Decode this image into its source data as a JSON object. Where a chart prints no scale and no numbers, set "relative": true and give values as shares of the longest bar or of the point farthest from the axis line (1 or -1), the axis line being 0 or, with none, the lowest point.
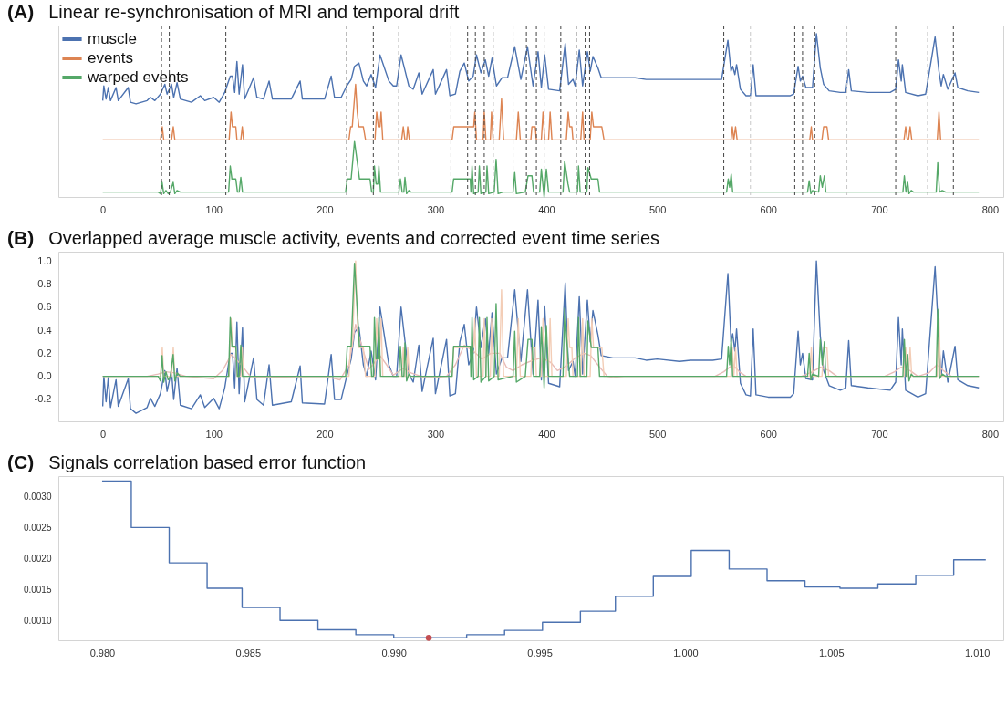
{
  "chart_data": [
    {
      "type": "line",
      "title": "Linear re-synchronisation of MRI and temporal drift",
      "annotations": [
        "(A)"
      ],
      "relative": true,
      "legend": "top left",
      "xlim": [
        -40,
        812
      ],
      "xticks": [
        0,
        100,
        200,
        300,
        400,
        500,
        600,
        700,
        800
      ],
      "series": [
        {
          "name": "muscle",
          "color": "#4c72b0",
          "x": [
            0,
            1,
            3,
            5,
            7,
            12,
            14,
            23,
            25,
            30,
            40,
            43,
            47,
            52,
            56,
            58,
            62,
            64,
            67,
            70,
            80,
            88,
            92,
            100,
            105,
            110,
            115,
            117,
            119,
            121,
            123,
            126,
            128,
            136,
            139,
            145,
            150,
            153,
            170,
            178,
            180,
            200,
            206,
            209,
            215,
            220,
            224,
            227,
            231,
            235,
            238,
            242,
            246,
            250,
            254,
            258,
            262,
            265,
            269,
            272,
            276,
            280,
            285,
            288,
            298,
            300,
            310,
            313,
            318,
            322,
            326,
            330,
            334,
            337,
            341,
            345,
            348,
            351,
            355,
            360,
            365,
            371.5,
            377,
            383,
            388,
            392.5,
            395.5,
            398.5,
            402,
            412,
            417,
            420,
            424,
            426,
            429.7,
            432.7,
            437,
            439.6,
            442,
            446.5,
            449.5,
            460,
            480,
            490,
            500,
            520,
            530,
            550,
            558,
            563.7,
            566.5,
            568,
            570,
            571.5,
            575,
            580,
            584,
            586.5,
            589,
            600,
            620,
            623,
            627,
            629,
            631,
            634,
            640,
            643.5,
            647,
            650,
            655,
            665,
            670,
            672.6,
            675,
            690,
            710,
            715,
            717.5,
            720,
            721,
            724,
            735,
            742,
            750.5,
            754,
            756,
            758,
            762,
            768.5,
            771,
            780,
            790
          ],
          "values": [
            0.59,
            0.68,
            0.6,
            0.67,
            0.59,
            0.67,
            0.59,
            0.67,
            0.58,
            0.57,
            0.59,
            0.61,
            0.59,
            0.63,
            0.69,
            0.63,
            0.69,
            0.61,
            0.7,
            0.6,
            0.58,
            0.62,
            0.59,
            0.61,
            0.58,
            0.64,
            0.74,
            0.74,
            0.64,
            0.83,
            0.63,
            0.81,
            0.6,
            0.73,
            0.61,
            0.6,
            0.71,
            0.6,
            0.6,
            0.71,
            0.6,
            0.6,
            0.74,
            0.61,
            0.61,
            0.68,
            0.72,
            0.8,
            0.82,
            0.71,
            0.68,
            0.75,
            0.67,
            0.87,
            0.79,
            0.71,
            0.68,
            0.68,
            0.87,
            0.79,
            0.68,
            0.66,
            0.76,
            0.63,
            0.78,
            0.63,
            0.78,
            0.62,
            0.63,
            0.77,
            0.82,
            0.71,
            0.74,
            0.87,
            0.76,
            0.84,
            0.74,
            0.85,
            0.68,
            0.73,
            0.73,
            0.92,
            0.72,
            0.92,
            0.68,
            0.89,
            0.67,
            0.87,
            0.66,
            0.65,
            0.94,
            0.69,
            0.72,
            0.68,
            0.9,
            0.68,
            0.89,
            0.77,
            0.86,
            0.79,
            0.73,
            0.73,
            0.73,
            0.72,
            0.72,
            0.72,
            0.72,
            0.72,
            0.72,
            0.96,
            0.77,
            0.8,
            0.75,
            0.81,
            0.66,
            0.62,
            0.62,
            0.81,
            0.62,
            0.62,
            0.62,
            0.63,
            0.8,
            0.71,
            0.74,
            0.67,
            0.67,
            1.0,
            0.79,
            0.69,
            0.65,
            0.64,
            0.64,
            0.78,
            0.65,
            0.64,
            0.64,
            0.66,
            0.84,
            0.71,
            0.81,
            0.64,
            0.62,
            0.63,
            0.98,
            0.77,
            0.68,
            0.75,
            0.66,
            0.76,
            0.67,
            0.65,
            0.64
          ]
        },
        {
          "name": "events",
          "color": "#dd8452",
          "x": [
            0,
            52,
            53.7,
            55,
            62,
            63.6,
            65,
            114,
            115.7,
            117,
            120,
            121,
            124.5,
            125.8,
            127,
            222,
            223.5,
            225,
            226,
            228,
            229.5,
            231,
            235,
            237,
            245.5,
            247,
            248.5,
            250,
            251,
            252.5,
            269.5,
            271,
            272.5,
            274,
            275,
            276.5,
            315,
            316.5,
            334.5,
            335.5,
            337,
            343,
            344,
            345.5,
            349.5,
            350.6,
            352,
            357.5,
            359.6,
            361.5,
            373,
            374.7,
            376.5,
            386,
            387,
            390,
            391,
            395.5,
            397,
            398.5,
            402,
            403.4,
            405,
            418,
            419.7,
            421,
            423,
            424,
            431,
            432.7,
            434,
            439.5,
            441,
            442.5,
            450,
            452,
            566.5,
            567.7,
            569,
            570.6,
            572,
            637.5,
            638.9,
            640,
            648.5,
            650,
            651.5,
            653,
            654.5,
            722.5,
            724,
            725.5,
            726.5,
            728,
            729.5,
            752.5,
            754,
            755.5,
            790
          ],
          "values": [
            0.35,
            0.35,
            0.43,
            0.35,
            0.35,
            0.43,
            0.35,
            0.35,
            0.52,
            0.43,
            0.43,
            0.35,
            0.35,
            0.43,
            0.35,
            0.35,
            0.43,
            0.43,
            0.52,
            0.69,
            0.52,
            0.43,
            0.43,
            0.35,
            0.35,
            0.52,
            0.43,
            0.43,
            0.52,
            0.35,
            0.35,
            0.43,
            0.35,
            0.35,
            0.43,
            0.35,
            0.35,
            0.43,
            0.43,
            0.52,
            0.35,
            0.35,
            0.52,
            0.35,
            0.35,
            0.52,
            0.35,
            0.35,
            0.6,
            0.35,
            0.35,
            0.52,
            0.35,
            0.35,
            0.43,
            0.43,
            0.35,
            0.35,
            0.52,
            0.35,
            0.35,
            0.52,
            0.35,
            0.35,
            0.52,
            0.43,
            0.43,
            0.35,
            0.35,
            0.52,
            0.35,
            0.35,
            0.52,
            0.43,
            0.43,
            0.35,
            0.35,
            0.43,
            0.35,
            0.43,
            0.35,
            0.35,
            0.43,
            0.35,
            0.35,
            0.43,
            0.43,
            0.43,
            0.35,
            0.35,
            0.43,
            0.35,
            0.35,
            0.43,
            0.35,
            0.35,
            0.52,
            0.35,
            0.35
          ]
        },
        {
          "name": "warped events",
          "color": "#55a868",
          "x": [
            0,
            50,
            52,
            53.5,
            55,
            57,
            59,
            61,
            63.5,
            65,
            67,
            70,
            113.5,
            115,
            116.5,
            120,
            121.5,
            123,
            124.5,
            126,
            219,
            220.5,
            224,
            227,
            230,
            231.5,
            241,
            242.5,
            244,
            245,
            246.5,
            248,
            249,
            250.5,
            267,
            268.4,
            270,
            271.5,
            272.5,
            274,
            276,
            278,
            315,
            316.4,
            331.4,
            332,
            333,
            334.5,
            338.5,
            339.6,
            341,
            345.5,
            346.5,
            348,
            353,
            354.7,
            356.5,
            361,
            370,
            371.5,
            373,
            381,
            383.5,
            387,
            388.5,
            394,
            395.5,
            398,
            400,
            402,
            415,
            416.5,
            419.5,
            421,
            428,
            429,
            430.5,
            436.5,
            437.5,
            440.5,
            446.5,
            448,
            562.5,
            564,
            565.3,
            566.7,
            568,
            635.5,
            637,
            638.5,
            640,
            645.5,
            647,
            648.8,
            650.7,
            652,
            721.5,
            722.8,
            724.3,
            725.8,
            727,
            729,
            731,
            751.5,
            752.9,
            754.5,
            757,
            760,
            790
          ],
          "values": [
            0.03,
            0.03,
            0.02,
            0.09,
            0.02,
            0.04,
            0.02,
            0.03,
            0.09,
            0.02,
            0.04,
            0.03,
            0.03,
            0.19,
            0.11,
            0.11,
            0.03,
            0.03,
            0.12,
            0.03,
            0.03,
            0.11,
            0.11,
            0.34,
            0.19,
            0.11,
            0.11,
            0.03,
            0.03,
            0.19,
            0.08,
            0.08,
            0.19,
            0.03,
            0.03,
            0.11,
            0.03,
            0.03,
            0.12,
            0.02,
            0.04,
            0.03,
            0.03,
            0.11,
            0.11,
            0.03,
            0.19,
            0.02,
            0.03,
            0.19,
            0.02,
            0.03,
            0.19,
            0.02,
            0.03,
            0.23,
            0.02,
            0.03,
            0.03,
            0.15,
            0.02,
            0.03,
            0.13,
            0.13,
            0.03,
            0.03,
            0.17,
            0.0,
            0.17,
            0.03,
            0.03,
            0.22,
            0.08,
            0.03,
            0.03,
            0.19,
            0.03,
            0.03,
            0.18,
            0.11,
            0.11,
            0.03,
            0.03,
            0.11,
            0.06,
            0.14,
            0.03,
            0.03,
            0.1,
            0.02,
            0.04,
            0.03,
            0.13,
            0.06,
            0.13,
            0.03,
            0.03,
            0.13,
            0.03,
            0.09,
            0.02,
            0.04,
            0.03,
            0.03,
            0.21,
            0.03,
            0.04,
            0.03,
            0.03
          ]
        }
      ],
      "ref_lines": [
        {
          "axis": "x",
          "value": 53,
          "color": "#444444",
          "line_style": "dashed"
        },
        {
          "axis": "x",
          "value": 60,
          "color": "#444444",
          "line_style": "dashed"
        },
        {
          "axis": "x",
          "value": 111,
          "color": "#444444",
          "line_style": "dashed"
        },
        {
          "axis": "x",
          "value": 220,
          "color": "#444444",
          "line_style": "dashed"
        },
        {
          "axis": "x",
          "value": 244,
          "color": "#444444",
          "line_style": "dashed"
        },
        {
          "axis": "x",
          "value": 267,
          "color": "#444444",
          "line_style": "dashed"
        },
        {
          "axis": "x",
          "value": 314,
          "color": "#444444",
          "line_style": "dashed"
        },
        {
          "axis": "x",
          "value": 329,
          "color": "#444444",
          "line_style": "dashed"
        },
        {
          "axis": "x",
          "value": 336,
          "color": "#444444",
          "line_style": "dashed"
        },
        {
          "axis": "x",
          "value": 344,
          "color": "#444444",
          "line_style": "dashed"
        },
        {
          "axis": "x",
          "value": 352,
          "color": "#444444",
          "line_style": "dashed"
        },
        {
          "axis": "x",
          "value": 370,
          "color": "#444444",
          "line_style": "dashed"
        },
        {
          "axis": "x",
          "value": 382,
          "color": "#444444",
          "line_style": "dashed"
        },
        {
          "axis": "x",
          "value": 391,
          "color": "#444444",
          "line_style": "dashed"
        },
        {
          "axis": "x",
          "value": 398,
          "color": "#444444",
          "line_style": "dashed"
        },
        {
          "axis": "x",
          "value": 413,
          "color": "#444444",
          "line_style": "dashed"
        },
        {
          "axis": "x",
          "value": 427,
          "color": "#444444",
          "line_style": "dashed"
        },
        {
          "axis": "x",
          "value": 435,
          "color": "#444444",
          "line_style": "dashed"
        },
        {
          "axis": "x",
          "value": 439,
          "color": "#444444",
          "line_style": "dashed"
        },
        {
          "axis": "x",
          "value": 560,
          "color": "#444444",
          "line_style": "dashed"
        },
        {
          "axis": "x",
          "value": 584,
          "color": "#c8c8c8",
          "line_style": "dashed"
        },
        {
          "axis": "x",
          "value": 624,
          "color": "#444444",
          "line_style": "dashed"
        },
        {
          "axis": "x",
          "value": 631,
          "color": "#444444",
          "line_style": "dashed"
        },
        {
          "axis": "x",
          "value": 642,
          "color": "#444444",
          "line_style": "dashed"
        },
        {
          "axis": "x",
          "value": 671,
          "color": "#c8c8c8",
          "line_style": "dashed"
        },
        {
          "axis": "x",
          "value": 715,
          "color": "#444444",
          "line_style": "dashed"
        },
        {
          "axis": "x",
          "value": 744,
          "color": "#444444",
          "line_style": "dashed"
        },
        {
          "axis": "x",
          "value": 767,
          "color": "#444444",
          "line_style": "dashed"
        }
      ]
    },
    {
      "type": "line",
      "title": "Overlapped average muscle activity, events and corrected event time series",
      "annotations": [
        "(B)"
      ],
      "xlim": [
        -40,
        812
      ],
      "xticks": [
        0,
        100,
        200,
        300,
        400,
        500,
        600,
        700,
        800
      ],
      "ylim": [
        -0.39,
        1.08
      ],
      "yticks": [
        -0.2,
        {
          "value": 0,
          "label": "0.0"
        },
        0.2,
        0.4,
        0.6,
        0.8,
        {
          "value": 1,
          "label": "1.0"
        }
      ],
      "series": [
        {
          "color": "#4c72b0",
          "x": [
            0,
            1,
            3,
            5,
            7,
            12,
            14,
            23,
            25,
            30,
            40,
            43,
            47,
            52,
            56,
            58,
            62,
            64,
            67,
            70,
            80,
            88,
            92,
            100,
            105,
            110,
            115,
            117,
            119,
            121,
            123,
            126,
            128,
            136,
            139,
            145,
            150,
            153,
            170,
            178,
            180,
            200,
            206,
            209,
            215,
            220,
            224,
            227,
            231,
            235,
            238,
            242,
            246,
            250,
            254,
            258,
            262,
            265,
            269,
            272,
            276,
            280,
            285,
            288,
            298,
            300,
            310,
            313,
            318,
            322,
            326,
            330,
            334,
            337,
            341,
            345,
            348,
            351,
            355,
            360,
            365,
            371.5,
            377,
            383,
            388,
            392.5,
            395.5,
            398.5,
            402,
            412,
            417,
            420,
            424,
            426,
            429.7,
            432.7,
            437,
            439.6,
            442,
            446.5,
            449.5,
            460,
            480,
            490,
            500,
            520,
            530,
            550,
            558,
            563.7,
            566.5,
            568,
            570,
            571.5,
            575,
            580,
            584,
            586.5,
            589,
            600,
            620,
            623,
            627,
            629,
            631,
            634,
            640,
            643.5,
            647,
            650,
            655,
            665,
            670,
            672.6,
            675,
            690,
            710,
            715,
            717.5,
            720,
            721,
            724,
            735,
            742,
            750.5,
            754,
            756,
            758,
            762,
            768.5,
            771,
            780,
            790
          ],
          "values": [
            -0.26,
            0.0,
            -0.22,
            -0.01,
            -0.27,
            -0.03,
            -0.26,
            -0.02,
            -0.28,
            -0.32,
            -0.27,
            -0.19,
            -0.26,
            -0.15,
            0.05,
            -0.13,
            0.05,
            -0.2,
            0.07,
            -0.25,
            -0.28,
            -0.16,
            -0.27,
            -0.19,
            -0.28,
            -0.1,
            0.2,
            0.2,
            -0.1,
            0.47,
            -0.15,
            0.42,
            -0.22,
            0.16,
            -0.2,
            -0.25,
            0.1,
            -0.25,
            -0.22,
            0.09,
            -0.23,
            -0.24,
            0.19,
            -0.2,
            -0.2,
            0.0,
            0.15,
            0.38,
            0.43,
            0.1,
            0.0,
            0.22,
            -0.03,
            0.6,
            0.35,
            0.1,
            0.0,
            0.0,
            0.6,
            0.35,
            0.02,
            -0.05,
            0.27,
            -0.13,
            0.33,
            -0.15,
            0.32,
            -0.17,
            -0.15,
            0.3,
            0.45,
            0.1,
            0.2,
            0.6,
            0.25,
            0.5,
            0.2,
            0.55,
            0.02,
            0.16,
            0.16,
            0.75,
            0.13,
            0.75,
            0.02,
            0.66,
            -0.03,
            0.61,
            -0.06,
            -0.09,
            0.81,
            0.05,
            0.13,
            0.0,
            0.69,
            0.02,
            0.66,
            0.3,
            0.57,
            0.36,
            0.18,
            0.16,
            0.16,
            0.14,
            0.15,
            0.13,
            0.14,
            0.14,
            0.15,
            0.89,
            0.3,
            0.37,
            0.22,
            0.41,
            -0.06,
            -0.16,
            -0.17,
            0.41,
            -0.16,
            -0.18,
            -0.18,
            -0.15,
            0.39,
            0.1,
            0.2,
            -0.02,
            -0.03,
            1.0,
            0.35,
            0.05,
            -0.08,
            -0.12,
            -0.1,
            0.31,
            -0.08,
            -0.1,
            -0.12,
            -0.05,
            0.51,
            0.1,
            0.41,
            -0.12,
            -0.18,
            -0.15,
            0.95,
            0.3,
            0.0,
            0.22,
            -0.05,
            0.26,
            -0.03,
            -0.08,
            -0.1
          ]
        },
        {
          "color": "#e8bcb8",
          "x": [
            0,
            40,
            50,
            57,
            65,
            75,
            100,
            108,
            116,
            125,
            133,
            140,
            200,
            214,
            222,
            228,
            234,
            240,
            245,
            250,
            256,
            262,
            271,
            278,
            290,
            300,
            310,
            318,
            326,
            334,
            342,
            350,
            358,
            364,
            370,
            378,
            388,
            396,
            404,
            410,
            418,
            426,
            434,
            440,
            448,
            455,
            460,
            470,
            552,
            560,
            568,
            574,
            580,
            630,
            640,
            647,
            655,
            662,
            705,
            714,
            720,
            728,
            735,
            745,
            752,
            758,
            765,
            790
          ],
          "values": [
            0,
            0,
            0.02,
            0.04,
            0.03,
            0,
            -0.02,
            0.05,
            0.19,
            0.1,
            0,
            -0.01,
            0,
            -0.03,
            0.1,
            0.45,
            0.25,
            0.06,
            0.12,
            0.18,
            0.1,
            0.01,
            0.07,
            0.03,
            -0.01,
            -0.01,
            0,
            0.1,
            0.27,
            0.22,
            0.15,
            0.2,
            0.2,
            0.08,
            0.05,
            0.1,
            0.14,
            0.16,
            0.12,
            0.05,
            0.09,
            0.16,
            0.2,
            0.18,
            0.08,
            0,
            -0.01,
            0,
            0,
            0.04,
            0.1,
            0.04,
            0,
            0,
            0.04,
            0.08,
            0.05,
            0,
            0,
            0.04,
            0.08,
            0.05,
            0,
            0.03,
            0.1,
            0.05,
            0,
            0
          ]
        },
        {
          "color": "#f3cdb6",
          "x": [
            0,
            52,
            53.7,
            55,
            62,
            63.6,
            65,
            114,
            115.7,
            117,
            120,
            121,
            124.5,
            125.8,
            127,
            222,
            223.5,
            225,
            226,
            228,
            229.5,
            231,
            235,
            237,
            245.5,
            247,
            248.5,
            250,
            251,
            252.5,
            269.5,
            271,
            272.5,
            274,
            275,
            276.5,
            315,
            316.5,
            334.5,
            335.5,
            337,
            343,
            344,
            345.5,
            349.5,
            350.6,
            352,
            357.5,
            359.6,
            361.5,
            373,
            374.7,
            376.5,
            386,
            387,
            390,
            391,
            395.5,
            397,
            398.5,
            402,
            403.4,
            405,
            418,
            419.7,
            421,
            423,
            424,
            431,
            432.7,
            434,
            439.5,
            441,
            442.5,
            450,
            452,
            566.5,
            567.7,
            569,
            570.6,
            572,
            637.5,
            638.9,
            640,
            648.5,
            650,
            651.5,
            653,
            654.5,
            722.5,
            724,
            725.5,
            726.5,
            728,
            729.5,
            752.5,
            754,
            755.5,
            790
          ],
          "values": [
            0,
            0,
            0.25,
            0,
            0,
            0.25,
            0,
            0,
            0.5,
            0.25,
            0.25,
            0,
            0,
            0.25,
            0,
            0,
            0.25,
            0.25,
            0.5,
            1.0,
            0.5,
            0.25,
            0.25,
            0,
            0,
            0.5,
            0.25,
            0.25,
            0.5,
            0,
            0,
            0.25,
            0,
            0,
            0.25,
            0,
            0,
            0.25,
            0.25,
            0.5,
            0,
            0,
            0.5,
            0,
            0,
            0.5,
            0,
            0,
            0.75,
            0,
            0,
            0.5,
            0,
            0,
            0.25,
            0.25,
            0,
            0,
            0.5,
            0,
            0,
            0.5,
            0,
            0,
            0.5,
            0.25,
            0.25,
            0,
            0,
            0.5,
            0,
            0,
            0.5,
            0.25,
            0.25,
            0,
            0,
            0.25,
            0,
            0.25,
            0,
            0,
            0.25,
            0,
            0,
            0.25,
            0.25,
            0.25,
            0,
            0,
            0.25,
            0,
            0,
            0.25,
            0,
            0,
            0.5,
            0,
            0
          ]
        },
        {
          "color": "#55a868",
          "x": [
            0,
            50,
            52,
            53.5,
            55,
            57,
            59,
            61,
            63.5,
            65,
            67,
            70,
            113.5,
            115,
            116.5,
            120,
            121.5,
            123,
            124.5,
            126,
            219,
            220.5,
            224,
            227,
            230,
            231.5,
            241,
            242.5,
            244,
            245,
            246.5,
            248,
            249,
            250.5,
            267,
            268.4,
            270,
            271.5,
            272.5,
            274,
            276,
            278,
            315,
            316.4,
            331.4,
            332,
            333,
            334.5,
            338.5,
            339.6,
            341,
            345.5,
            346.5,
            348,
            353,
            354.7,
            356.5,
            361,
            370,
            371.5,
            373,
            381,
            383.5,
            387,
            388.5,
            394,
            395.5,
            398,
            400,
            402,
            415,
            416.5,
            419.5,
            421,
            428,
            429,
            430.5,
            436.5,
            437.5,
            440.5,
            446.5,
            448,
            562.5,
            564,
            565.3,
            566.7,
            568,
            635.5,
            637,
            638.5,
            640,
            645.5,
            647,
            648.8,
            650.7,
            652,
            721.5,
            722.8,
            724.3,
            725.8,
            727,
            729,
            731,
            751.5,
            752.9,
            754.5,
            757,
            760,
            790
          ],
          "values": [
            0,
            0,
            -0.04,
            0.18,
            -0.05,
            0.04,
            -0.03,
            0,
            0.19,
            -0.04,
            0.03,
            0,
            0,
            0.51,
            0.26,
            0.26,
            0,
            0,
            0.27,
            0,
            0,
            0.26,
            0.26,
            0.98,
            0.5,
            0.26,
            0.26,
            0,
            0,
            0.51,
            0.15,
            0.15,
            0.51,
            0,
            0,
            0.26,
            0,
            0,
            0.29,
            -0.04,
            0.02,
            0,
            0,
            0.26,
            0.26,
            0,
            0.51,
            -0.03,
            0,
            0.51,
            -0.05,
            0,
            0.51,
            -0.04,
            0,
            0.63,
            -0.03,
            -0.02,
            0,
            0.39,
            -0.05,
            0,
            0.32,
            0.32,
            0,
            0,
            0.43,
            -0.1,
            0.44,
            0,
            0,
            0.59,
            0.16,
            0,
            0,
            0.51,
            0,
            0,
            0.48,
            0.25,
            0.25,
            0,
            0,
            0.26,
            0.1,
            0.34,
            0,
            0,
            0.2,
            -0.03,
            0.02,
            0,
            0.32,
            0.1,
            0.3,
            0,
            0,
            0.32,
            0,
            0.19,
            -0.04,
            0.02,
            0,
            0,
            0.58,
            -0.02,
            0.02,
            0,
            0
          ]
        }
      ]
    },
    {
      "type": "step",
      "title": "Signals correlation based error function",
      "annotations": [
        "(C)"
      ],
      "xlim": [
        0.9785,
        1.0109
      ],
      "xticks": [
        {
          "value": 0.98,
          "label": "0.980"
        },
        {
          "value": 0.985,
          "label": "0.985"
        },
        {
          "value": 0.99,
          "label": "0.990"
        },
        {
          "value": 0.995,
          "label": "0.995"
        },
        {
          "value": 1.0,
          "label": "1.000"
        },
        {
          "value": 1.005,
          "label": "1.005"
        },
        {
          "value": 1.01,
          "label": "1.010"
        }
      ],
      "ylim": [
        0.00068,
        0.00333
      ],
      "yticks": [
        {
          "value": 0.001,
          "label": "0.0010"
        },
        {
          "value": 0.0015,
          "label": "0.0015"
        },
        {
          "value": 0.002,
          "label": "0.0020"
        },
        {
          "value": 0.0025,
          "label": "0.0025"
        },
        {
          "value": 0.003,
          "label": "0.0030"
        }
      ],
      "series": [
        {
          "color": "#4c72b0",
          "x": [
            0.98,
            0.981,
            0.9823,
            0.9836,
            0.9848,
            0.9861,
            0.9874,
            0.9887,
            0.99,
            0.9912,
            0.9925,
            0.9938,
            0.9951,
            0.9964,
            0.9976,
            0.9989,
            1.0002,
            1.0015,
            1.0028,
            1.0041,
            1.0053,
            1.0066,
            1.0079,
            1.0092,
            1.0103
          ],
          "values": [
            0.00325,
            0.0025,
            0.00193,
            0.00152,
            0.00121,
            0.001,
            0.00085,
            0.00077,
            0.00072,
            0.00072,
            0.00077,
            0.00084,
            0.00097,
            0.00115,
            0.00139,
            0.00171,
            0.00213,
            0.00183,
            0.00164,
            0.00154,
            0.00152,
            0.00159,
            0.00173,
            0.00198,
            0.00198
          ]
        },
        {
          "type": "scatter",
          "marker": "circle",
          "color": "#c44e52",
          "x": [
            0.9912
          ],
          "values": [
            0.00072
          ]
        }
      ]
    }
  ]
}
